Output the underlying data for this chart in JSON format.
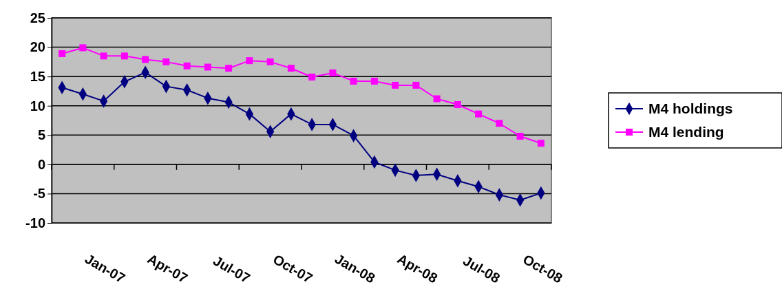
{
  "chart_data": {
    "type": "line",
    "categories": [
      null,
      null,
      "Jan-07",
      null,
      null,
      "Apr-07",
      null,
      null,
      "Jul-07",
      null,
      null,
      "Oct-07",
      null,
      null,
      "Jan-08",
      null,
      null,
      "Apr-08",
      null,
      null,
      "Jul-08",
      null,
      null,
      "Oct-08"
    ],
    "series": [
      {
        "name": "M4 holdings",
        "color": "#000080",
        "marker": "diamond",
        "values": [
          13.1,
          12.0,
          10.8,
          14.1,
          15.7,
          13.3,
          12.7,
          11.3,
          10.6,
          8.6,
          5.6,
          8.6,
          6.8,
          6.8,
          4.9,
          0.4,
          -1.0,
          -1.9,
          -1.7,
          -2.8,
          -3.8,
          -5.2,
          -6.1,
          -4.9
        ]
      },
      {
        "name": "M4 lending",
        "color": "#ff00ff",
        "marker": "square",
        "values": [
          18.9,
          19.9,
          18.5,
          18.5,
          17.9,
          17.5,
          16.8,
          16.6,
          16.4,
          17.7,
          17.5,
          16.4,
          14.9,
          15.6,
          14.2,
          14.2,
          13.5,
          13.5,
          11.2,
          10.2,
          8.6,
          7.0,
          4.8,
          3.6
        ]
      }
    ],
    "ylim": [
      -10,
      25
    ],
    "yticks": [
      -10,
      -5,
      0,
      5,
      10,
      15,
      20,
      25
    ],
    "grid": "y",
    "legend": "right"
  }
}
